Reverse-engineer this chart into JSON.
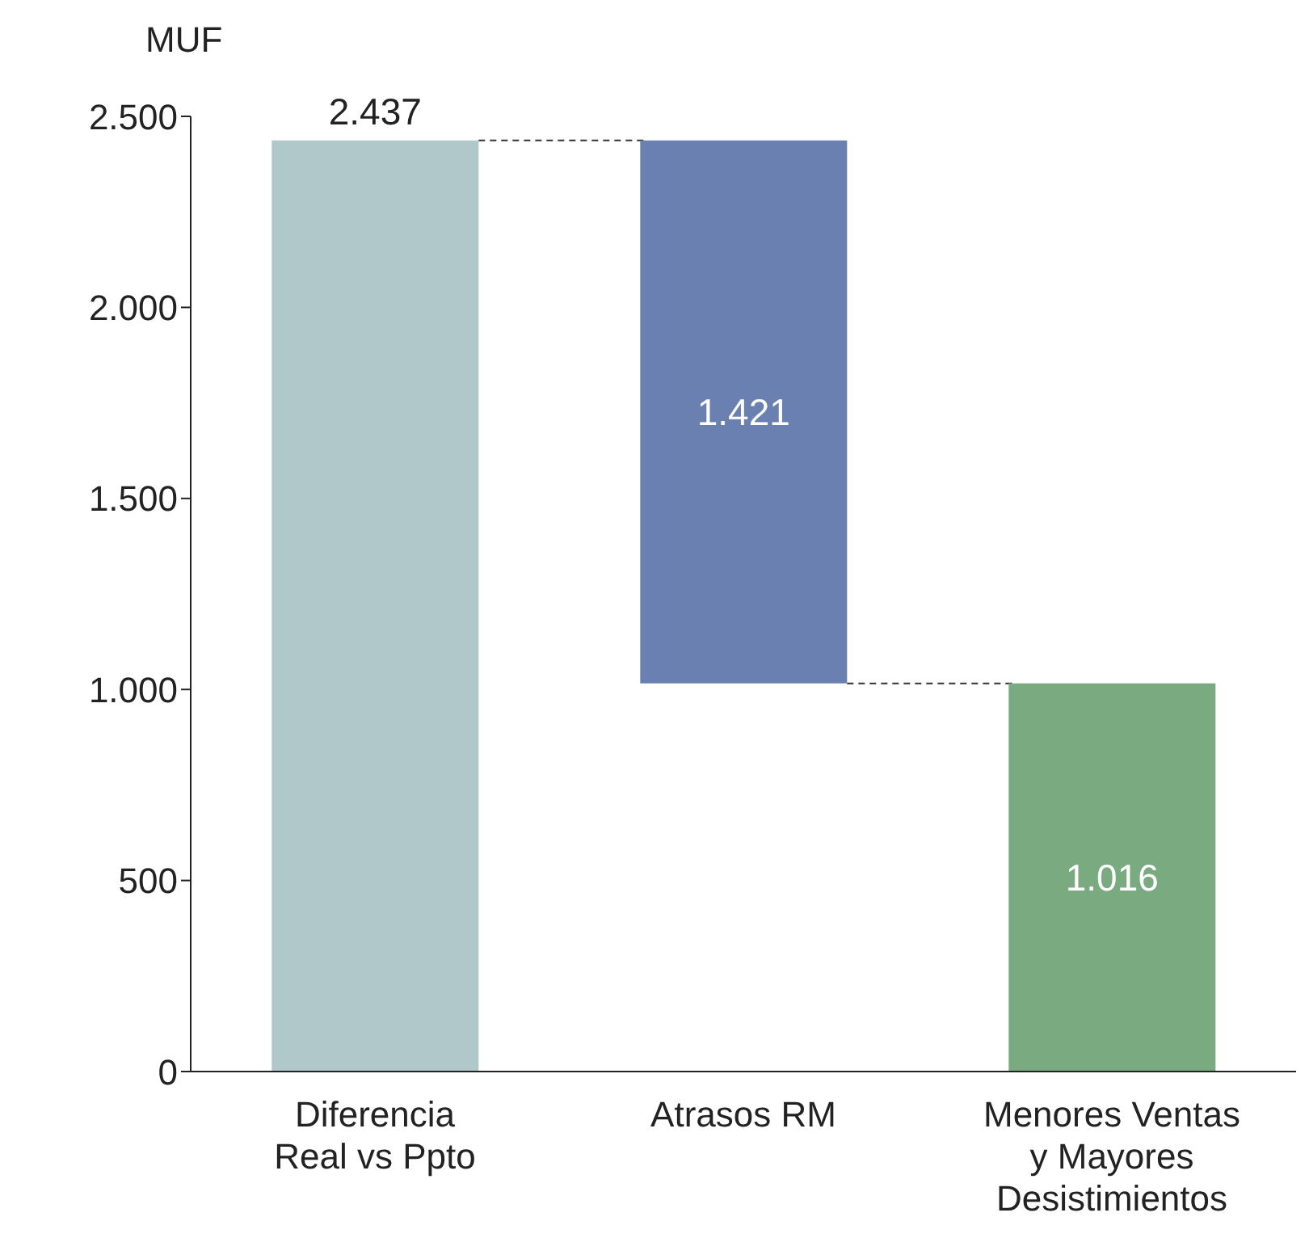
{
  "chart_data": {
    "type": "bar",
    "ylabel": "MUF",
    "categories": [
      "Diferencia Real vs Ppto",
      "Atrasos RM",
      "Menores Ventas y Mayores Desistimientos"
    ],
    "values": [
      2437,
      1421,
      1016
    ],
    "base": [
      0,
      1016,
      0
    ],
    "colors": [
      "#b1c8cb",
      "#6a80b0",
      "#79aa80"
    ],
    "value_labels": [
      "2.437",
      "1.421",
      "1.016"
    ],
    "ylim": [
      0,
      2500
    ],
    "yticks": [
      {
        "value": 0,
        "label": "0"
      },
      {
        "value": 500,
        "label": "500"
      },
      {
        "value": 1000,
        "label": "1.000"
      },
      {
        "value": 1500,
        "label": "1.500"
      },
      {
        "value": 2000,
        "label": "2.000"
      },
      {
        "value": 2500,
        "label": "2.500"
      }
    ],
    "grid": false
  }
}
